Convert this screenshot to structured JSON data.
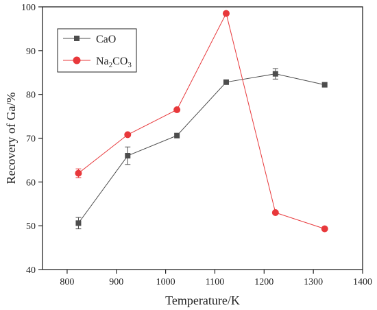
{
  "chart_data": {
    "type": "line",
    "xlabel": "Temperature/K",
    "ylabel": "Recovery of Ga/%",
    "xlim": [
      750,
      1400
    ],
    "ylim": [
      40,
      100
    ],
    "xticks": [
      "800",
      "900",
      "1000",
      "1100",
      "1200",
      "1300",
      "1400"
    ],
    "yticks": [
      "40",
      "50",
      "60",
      "70",
      "80",
      "90",
      "100"
    ],
    "legend_position": "top-left",
    "grid": false,
    "series": [
      {
        "name": "CaO",
        "color": "#4d4d4d",
        "marker": "square",
        "x": [
          823,
          923,
          1023,
          1123,
          1223,
          1323
        ],
        "y": [
          50.6,
          66.0,
          70.6,
          82.8,
          84.7,
          82.2
        ],
        "err": [
          1.3,
          2.0,
          0,
          0,
          1.2,
          0
        ]
      },
      {
        "name_parts": [
          {
            "t": "Na",
            "sub": false
          },
          {
            "t": "2",
            "sub": true
          },
          {
            "t": "CO",
            "sub": false
          },
          {
            "t": "3",
            "sub": true
          }
        ],
        "color": "#e8383b",
        "marker": "circle",
        "x": [
          823,
          923,
          1023,
          1123,
          1223,
          1323
        ],
        "y": [
          62.0,
          70.8,
          76.5,
          98.5,
          53.0,
          49.3
        ],
        "err": [
          1.0,
          0,
          0,
          0,
          0,
          0
        ]
      }
    ]
  }
}
